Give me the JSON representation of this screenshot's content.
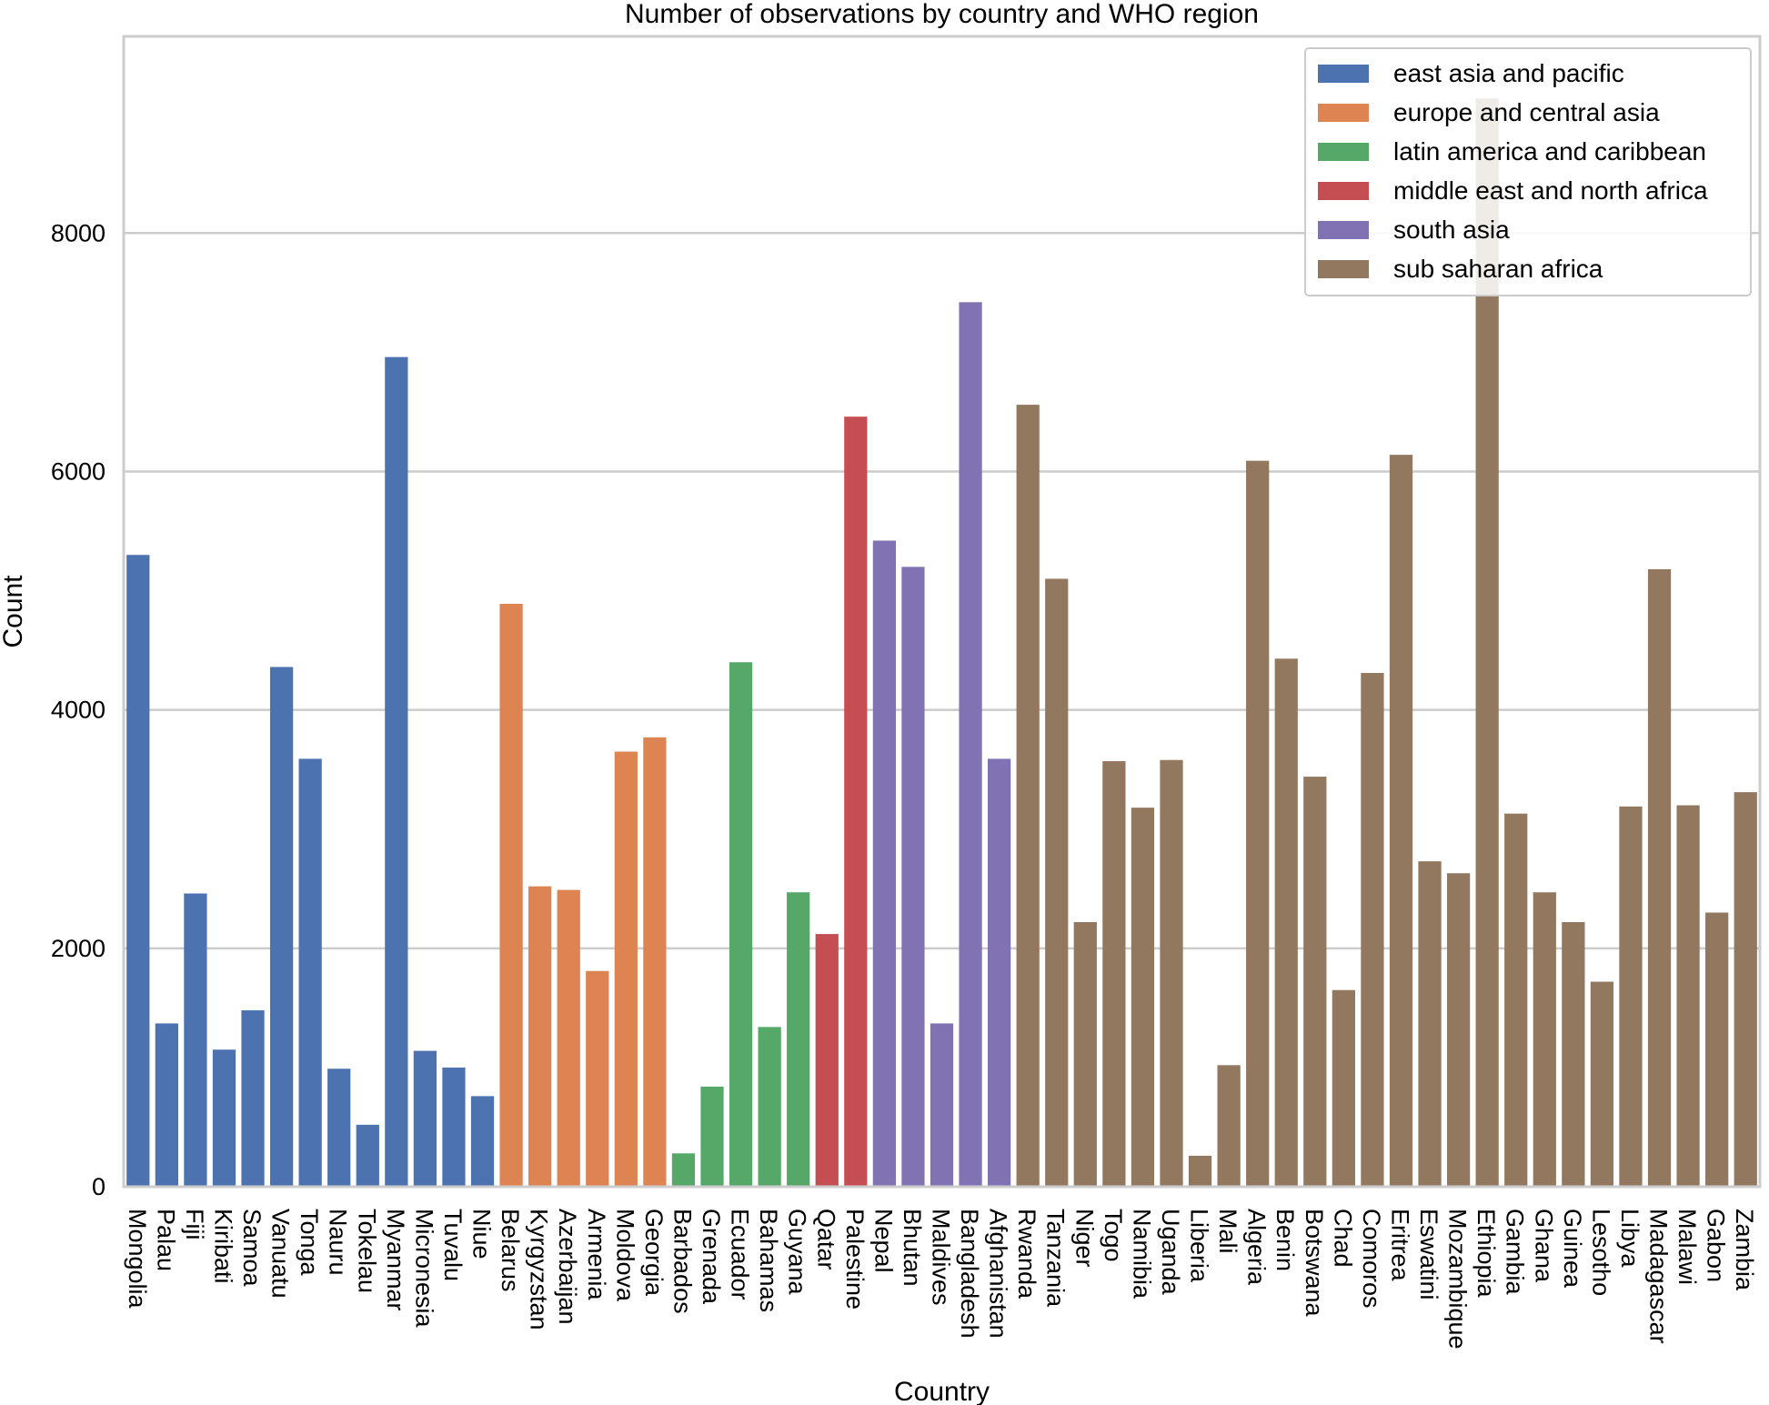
{
  "chart_data": {
    "type": "bar",
    "title": "Number of observations by country and WHO region",
    "xlabel": "Country",
    "ylabel": "Count",
    "ylim": [
      0,
      9650
    ],
    "yticks": [
      0,
      2000,
      4000,
      6000,
      8000
    ],
    "grid": "horizontal",
    "legend_position": "top-right",
    "categories": [
      "Mongolia",
      "Palau",
      "Fiji",
      "Kiribati",
      "Samoa",
      "Vanuatu",
      "Tonga",
      "Nauru",
      "Tokelau",
      "Myanmar",
      "Micronesia",
      "Tuvalu",
      "Niue",
      "Belarus",
      "Kyrgyzstan",
      "Azerbaijan",
      "Armenia",
      "Moldova",
      "Georgia",
      "Barbados",
      "Grenada",
      "Ecuador",
      "Bahamas",
      "Guyana",
      "Qatar",
      "Palestine",
      "Nepal",
      "Bhutan",
      "Maldives",
      "Bangladesh",
      "Afghanistan",
      "Rwanda",
      "Tanzania",
      "Niger",
      "Togo",
      "Namibia",
      "Uganda",
      "Liberia",
      "Mali",
      "Algeria",
      "Benin",
      "Botswana",
      "Chad",
      "Comoros",
      "Eritrea",
      "Eswatini",
      "Mozambique",
      "Ethiopia",
      "Gambia",
      "Ghana",
      "Guinea",
      "Lesotho",
      "Libya",
      "Madagascar",
      "Malawi",
      "Gabon",
      "Zambia"
    ],
    "series": [
      {
        "name": "east asia and pacific",
        "color": "#4c72b0",
        "values": [
          5300,
          1370,
          2460,
          1150,
          1480,
          4360,
          3590,
          990,
          520,
          6960,
          1140,
          1000,
          760,
          null,
          null,
          null,
          null,
          null,
          null,
          null,
          null,
          null,
          null,
          null,
          null,
          null,
          null,
          null,
          null,
          null,
          null,
          null,
          null,
          null,
          null,
          null,
          null,
          null,
          null,
          null,
          null,
          null,
          null,
          null,
          null,
          null,
          null,
          null,
          null,
          null,
          null,
          null,
          null,
          null,
          null,
          null,
          null
        ]
      },
      {
        "name": "europe and central asia",
        "color": "#dd8452",
        "values": [
          null,
          null,
          null,
          null,
          null,
          null,
          null,
          null,
          null,
          null,
          null,
          null,
          null,
          4890,
          2520,
          2490,
          1810,
          3650,
          3770,
          null,
          null,
          null,
          null,
          null,
          null,
          null,
          null,
          null,
          null,
          null,
          null,
          null,
          null,
          null,
          null,
          null,
          null,
          null,
          null,
          null,
          null,
          null,
          null,
          null,
          null,
          null,
          null,
          null,
          null,
          null,
          null,
          null,
          null,
          null,
          null,
          null,
          null
        ]
      },
      {
        "name": "latin america and caribbean",
        "color": "#55a868",
        "values": [
          null,
          null,
          null,
          null,
          null,
          null,
          null,
          null,
          null,
          null,
          null,
          null,
          null,
          null,
          null,
          null,
          null,
          null,
          null,
          280,
          840,
          4400,
          1340,
          2470,
          null,
          null,
          null,
          null,
          null,
          null,
          null,
          null,
          null,
          null,
          null,
          null,
          null,
          null,
          null,
          null,
          null,
          null,
          null,
          null,
          null,
          null,
          null,
          null,
          null,
          null,
          null,
          null,
          null,
          null,
          null,
          null,
          null
        ]
      },
      {
        "name": "middle east and north africa",
        "color": "#c44e52",
        "values": [
          null,
          null,
          null,
          null,
          null,
          null,
          null,
          null,
          null,
          null,
          null,
          null,
          null,
          null,
          null,
          null,
          null,
          null,
          null,
          null,
          null,
          null,
          null,
          null,
          2120,
          6460,
          null,
          null,
          null,
          null,
          null,
          null,
          null,
          null,
          null,
          null,
          null,
          null,
          null,
          null,
          null,
          null,
          null,
          null,
          null,
          null,
          null,
          null,
          null,
          null,
          null,
          null,
          null,
          null,
          null,
          null,
          null
        ]
      },
      {
        "name": "south asia",
        "color": "#8172b3",
        "values": [
          null,
          null,
          null,
          null,
          null,
          null,
          null,
          null,
          null,
          null,
          null,
          null,
          null,
          null,
          null,
          null,
          null,
          null,
          null,
          null,
          null,
          null,
          null,
          null,
          null,
          null,
          5420,
          5200,
          1370,
          7420,
          3590,
          null,
          null,
          null,
          null,
          null,
          null,
          null,
          null,
          null,
          null,
          null,
          null,
          null,
          null,
          null,
          null,
          null,
          null,
          null,
          null,
          null,
          null,
          null,
          null,
          null,
          null
        ]
      },
      {
        "name": "sub saharan africa",
        "color": "#937860",
        "values": [
          null,
          null,
          null,
          null,
          null,
          null,
          null,
          null,
          null,
          null,
          null,
          null,
          null,
          null,
          null,
          null,
          null,
          null,
          null,
          null,
          null,
          null,
          null,
          null,
          null,
          null,
          null,
          null,
          null,
          null,
          null,
          6560,
          5100,
          2220,
          3570,
          3180,
          3580,
          260,
          1020,
          6090,
          4430,
          3440,
          1650,
          4310,
          6140,
          2730,
          2630,
          9130,
          3130,
          2470,
          2220,
          1720,
          3190,
          5180,
          3200,
          2300,
          3310
        ]
      }
    ]
  }
}
